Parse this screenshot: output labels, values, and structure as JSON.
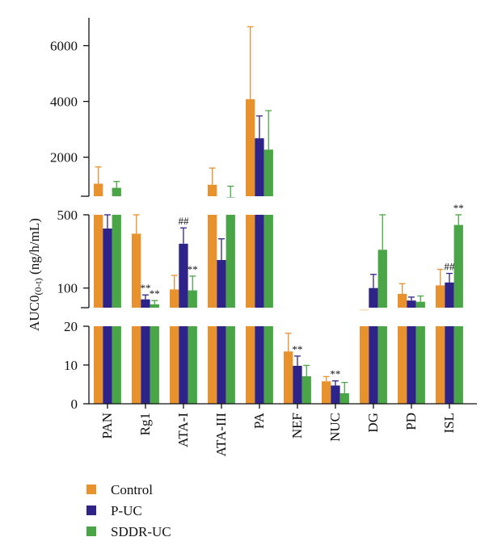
{
  "chart_data": {
    "type": "bar",
    "ylabel": "AUC0",
    "ylabel_sub": "(0-t)",
    "ylabel_unit": "(ng/h/mL)",
    "categories": [
      "PAN",
      "Rg1",
      "ATA-I",
      "ATA-III",
      "PA",
      "NEF",
      "NUC",
      "DG",
      "PD",
      "ISL"
    ],
    "colors": {
      "Control": "#e8922e",
      "P-UC": "#2e2388",
      "SDDR-UC": "#4aa547"
    },
    "series": [
      {
        "name": "Control",
        "values": [
          1050,
          330,
          97,
          1010,
          4080,
          13.5,
          5.8,
          62,
          88,
          106
        ],
        "errors": [
          600,
          310,
          35,
          600,
          2600,
          4.7,
          1.2,
          0,
          22,
          45
        ]
      },
      {
        "name": "P-UC",
        "values": [
          370,
          78,
          265,
          185,
          2680,
          9.8,
          4.7,
          100,
          76,
          113
        ],
        "errors": [
          140,
          8,
          110,
          110,
          800,
          2.5,
          1.2,
          35,
          6,
          25
        ]
      },
      {
        "name": "SDDR-UC",
        "values": [
          900,
          70,
          95,
          560,
          2270,
          7.1,
          2.7,
          232,
          74,
          400
        ],
        "errors": [
          230,
          6,
          35,
          400,
          1400,
          2.8,
          2.8,
          270,
          10,
          190
        ]
      }
    ],
    "y_axis_segments": [
      {
        "range": [
          0,
          20
        ],
        "scale": "linear",
        "ticks": [
          "0",
          "10",
          "20"
        ]
      },
      {
        "range": [
          65,
          500
        ],
        "scale": "log",
        "ticks": [
          "100",
          "500"
        ]
      },
      {
        "range": [
          600,
          7000
        ],
        "scale": "linear",
        "ticks": [
          "2000",
          "4000",
          "6000"
        ]
      }
    ],
    "annotations": [
      {
        "category": "Rg1",
        "series": "P-UC",
        "text": "**"
      },
      {
        "category": "Rg1",
        "series": "SDDR-UC",
        "text": "**"
      },
      {
        "category": "ATA-I",
        "series": "P-UC",
        "text": "##"
      },
      {
        "category": "ATA-I",
        "series": "SDDR-UC",
        "text": "**"
      },
      {
        "category": "NEF",
        "series": "P-UC",
        "text": "**"
      },
      {
        "category": "NUC",
        "series": "P-UC",
        "text": "**"
      },
      {
        "category": "ISL",
        "series": "P-UC",
        "text": "##"
      },
      {
        "category": "ISL",
        "series": "SDDR-UC",
        "text": "**"
      }
    ],
    "legend": {
      "position": "bottom-left",
      "items": [
        "Control",
        "P-UC",
        "SDDR-UC"
      ]
    },
    "grid": false
  }
}
